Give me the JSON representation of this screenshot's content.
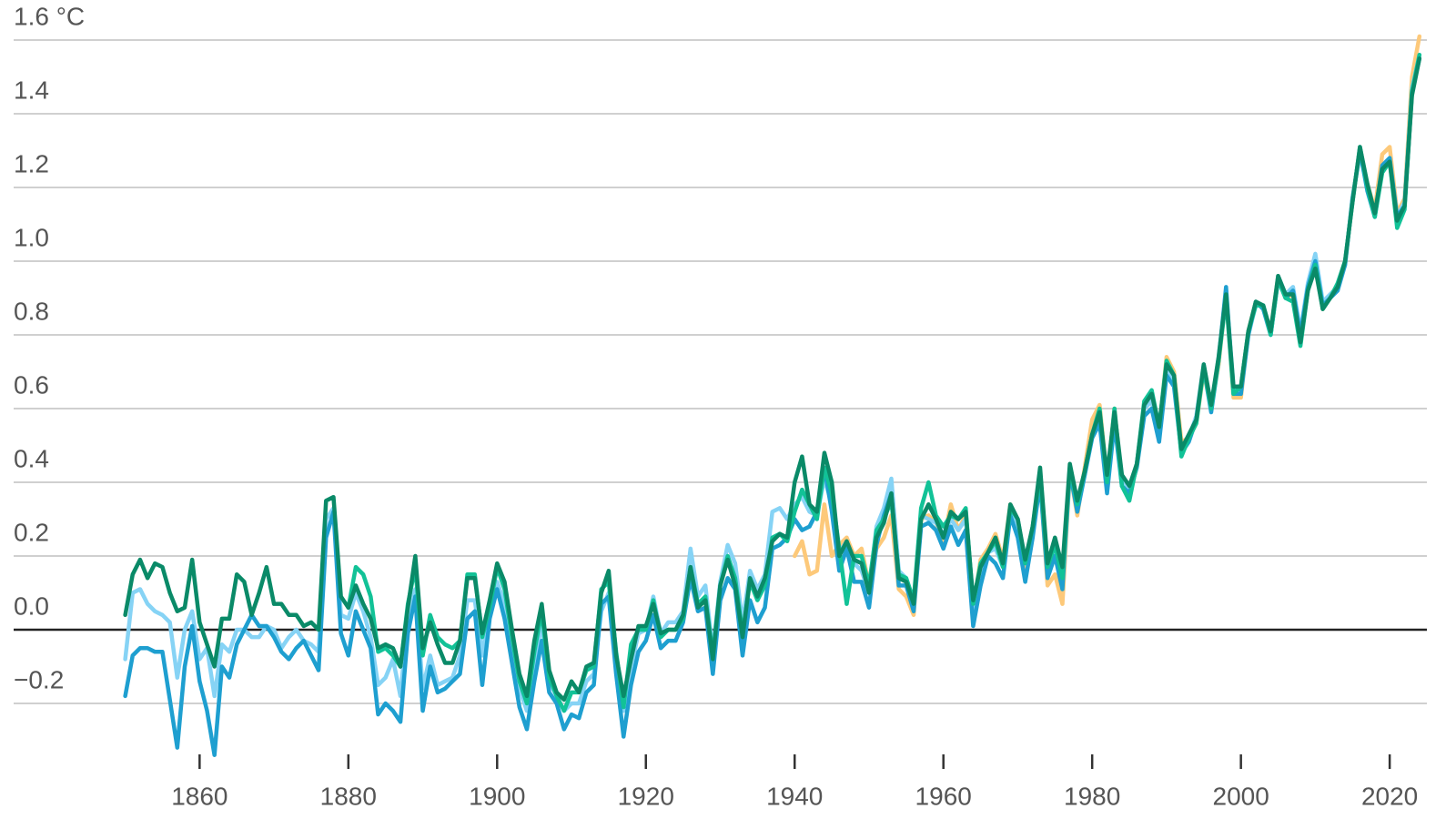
{
  "chart_data": {
    "type": "line",
    "xlim": [
      1835,
      2025
    ],
    "xticks": [
      1860,
      1880,
      1900,
      1920,
      1940,
      1960,
      1980,
      2000,
      2020
    ],
    "ylim": [
      -0.4,
      1.6
    ],
    "yticks": [
      {
        "value": -0.2,
        "label": "−0.2"
      },
      {
        "value": 0,
        "label": "0.0"
      },
      0.2,
      0.4,
      0.6,
      0.8,
      {
        "value": 1.0,
        "label": "1.0"
      },
      1.2,
      1.4,
      {
        "value": 1.6,
        "label": "1.6 °C"
      }
    ],
    "grid": true,
    "x": [
      1850,
      1851,
      1852,
      1853,
      1854,
      1855,
      1856,
      1857,
      1858,
      1859,
      1860,
      1861,
      1862,
      1863,
      1864,
      1865,
      1866,
      1867,
      1868,
      1869,
      1870,
      1871,
      1872,
      1873,
      1874,
      1875,
      1876,
      1877,
      1878,
      1879,
      1880,
      1881,
      1882,
      1883,
      1884,
      1885,
      1886,
      1887,
      1888,
      1889,
      1890,
      1891,
      1892,
      1893,
      1894,
      1895,
      1896,
      1897,
      1898,
      1899,
      1900,
      1901,
      1902,
      1903,
      1904,
      1905,
      1906,
      1907,
      1908,
      1909,
      1910,
      1911,
      1912,
      1913,
      1914,
      1915,
      1916,
      1917,
      1918,
      1919,
      1920,
      1921,
      1922,
      1923,
      1924,
      1925,
      1926,
      1927,
      1928,
      1929,
      1930,
      1931,
      1932,
      1933,
      1934,
      1935,
      1936,
      1937,
      1938,
      1939,
      1940,
      1941,
      1942,
      1943,
      1944,
      1945,
      1946,
      1947,
      1948,
      1949,
      1950,
      1951,
      1952,
      1953,
      1954,
      1955,
      1956,
      1957,
      1958,
      1959,
      1960,
      1961,
      1962,
      1963,
      1964,
      1965,
      1966,
      1967,
      1968,
      1969,
      1970,
      1971,
      1972,
      1973,
      1974,
      1975,
      1976,
      1977,
      1978,
      1979,
      1980,
      1981,
      1982,
      1983,
      1984,
      1985,
      1986,
      1987,
      1988,
      1989,
      1990,
      1991,
      1992,
      1993,
      1994,
      1995,
      1996,
      1997,
      1998,
      1999,
      2000,
      2001,
      2002,
      2003,
      2004,
      2005,
      2006,
      2007,
      2008,
      2009,
      2010,
      2011,
      2012,
      2013,
      2014,
      2015,
      2016,
      2017,
      2018,
      2019,
      2020,
      2021,
      2022,
      2023,
      2024
    ],
    "series": [
      {
        "color": "#fdc97a",
        "values": [
          null,
          null,
          null,
          null,
          null,
          null,
          null,
          null,
          null,
          null,
          null,
          null,
          null,
          null,
          null,
          null,
          null,
          null,
          null,
          null,
          null,
          null,
          null,
          null,
          null,
          null,
          null,
          null,
          null,
          null,
          null,
          null,
          null,
          null,
          null,
          null,
          null,
          null,
          null,
          null,
          null,
          null,
          null,
          null,
          null,
          null,
          null,
          null,
          null,
          null,
          null,
          null,
          null,
          null,
          null,
          null,
          null,
          null,
          null,
          null,
          null,
          null,
          null,
          null,
          null,
          null,
          null,
          null,
          null,
          null,
          null,
          null,
          null,
          null,
          null,
          null,
          null,
          null,
          null,
          null,
          null,
          null,
          null,
          null,
          null,
          null,
          null,
          null,
          null,
          null,
          0.2,
          0.24,
          0.15,
          0.16,
          0.34,
          0.2,
          0.23,
          0.25,
          0.2,
          0.22,
          0.12,
          0.22,
          0.25,
          0.31,
          0.11,
          0.09,
          0.04,
          0.3,
          0.31,
          0.29,
          0.24,
          0.34,
          0.27,
          0.31,
          0.06,
          0.19,
          0.22,
          0.26,
          0.19,
          0.34,
          0.28,
          0.17,
          0.27,
          0.41,
          0.12,
          0.15,
          0.07,
          0.43,
          0.31,
          0.44,
          0.57,
          0.61,
          0.41,
          0.6,
          0.4,
          0.37,
          0.44,
          0.6,
          0.64,
          0.54,
          0.74,
          0.7,
          0.51,
          0.52,
          0.56,
          0.7,
          0.6,
          0.72,
          0.91,
          0.63,
          0.63,
          0.81,
          0.89,
          0.87,
          0.81,
          0.96,
          0.9,
          0.91,
          0.78,
          0.93,
          1.0,
          0.87,
          0.91,
          0.93,
          0.99,
          1.17,
          1.3,
          1.21,
          1.14,
          1.29,
          1.31,
          1.13,
          1.17,
          1.5,
          1.61
        ]
      },
      {
        "color": "#86d3f5",
        "values": [
          -0.08,
          0.1,
          0.11,
          0.07,
          0.05,
          0.04,
          0.02,
          -0.13,
          0.0,
          0.05,
          -0.08,
          -0.05,
          -0.18,
          -0.04,
          -0.06,
          0.0,
          0.0,
          -0.02,
          -0.02,
          0.01,
          0.0,
          -0.05,
          -0.02,
          0.0,
          -0.03,
          -0.04,
          -0.06,
          0.3,
          0.33,
          0.04,
          0.03,
          0.1,
          0.05,
          -0.02,
          -0.15,
          -0.13,
          -0.08,
          -0.18,
          0.04,
          0.11,
          -0.16,
          -0.07,
          -0.15,
          -0.14,
          -0.13,
          -0.07,
          0.08,
          0.08,
          -0.07,
          0.06,
          0.13,
          0.07,
          -0.04,
          -0.16,
          -0.22,
          -0.1,
          0.02,
          -0.14,
          -0.18,
          -0.22,
          -0.2,
          -0.2,
          -0.14,
          -0.12,
          0.05,
          0.1,
          -0.08,
          -0.22,
          -0.1,
          -0.01,
          0.0,
          0.09,
          -0.01,
          0.02,
          0.02,
          0.05,
          0.22,
          0.09,
          0.12,
          -0.06,
          0.13,
          0.23,
          0.18,
          0.02,
          0.16,
          0.11,
          0.15,
          0.32,
          0.33,
          0.3,
          0.34,
          0.36,
          0.32,
          0.31,
          0.41,
          0.34,
          0.21,
          0.24,
          0.18,
          0.16,
          0.1,
          0.28,
          0.33,
          0.41,
          0.16,
          0.14,
          0.07,
          0.31,
          0.3,
          0.29,
          0.26,
          0.3,
          0.27,
          0.3,
          0.05,
          0.15,
          0.21,
          0.22,
          0.17,
          0.32,
          0.28,
          0.18,
          0.27,
          0.42,
          0.17,
          0.22,
          0.14,
          0.43,
          0.34,
          0.42,
          0.53,
          0.58,
          0.39,
          0.58,
          0.41,
          0.38,
          0.45,
          0.6,
          0.62,
          0.53,
          0.71,
          0.68,
          0.49,
          0.52,
          0.58,
          0.72,
          0.6,
          0.74,
          0.92,
          0.66,
          0.65,
          0.8,
          0.88,
          0.88,
          0.8,
          0.96,
          0.91,
          0.93,
          0.81,
          0.94,
          1.02,
          0.89,
          0.91,
          0.93,
          0.99,
          1.17,
          1.29,
          1.2,
          1.13,
          1.25,
          1.27,
          1.12,
          1.16,
          1.47,
          1.56
        ]
      },
      {
        "color": "#1e9fd0",
        "values": [
          -0.18,
          -0.07,
          -0.05,
          -0.05,
          -0.06,
          -0.06,
          -0.19,
          -0.32,
          -0.1,
          0.01,
          -0.14,
          -0.22,
          -0.34,
          -0.1,
          -0.13,
          -0.04,
          0.0,
          0.04,
          0.01,
          0.01,
          -0.02,
          -0.06,
          -0.08,
          -0.05,
          -0.03,
          -0.07,
          -0.11,
          0.25,
          0.32,
          -0.01,
          -0.07,
          0.05,
          0.0,
          -0.05,
          -0.23,
          -0.2,
          -0.22,
          -0.25,
          -0.01,
          0.09,
          -0.22,
          -0.1,
          -0.17,
          -0.16,
          -0.14,
          -0.12,
          0.03,
          0.05,
          -0.15,
          0.03,
          0.11,
          0.03,
          -0.09,
          -0.21,
          -0.27,
          -0.14,
          -0.03,
          -0.17,
          -0.2,
          -0.27,
          -0.23,
          -0.24,
          -0.17,
          -0.15,
          0.07,
          0.09,
          -0.12,
          -0.29,
          -0.15,
          -0.06,
          -0.03,
          0.04,
          -0.05,
          -0.03,
          -0.03,
          0.02,
          0.14,
          0.05,
          0.06,
          -0.12,
          0.08,
          0.14,
          0.11,
          -0.07,
          0.08,
          0.02,
          0.06,
          0.22,
          0.23,
          0.25,
          0.3,
          0.27,
          0.28,
          0.32,
          0.44,
          0.32,
          0.16,
          0.22,
          0.13,
          0.13,
          0.06,
          0.23,
          0.31,
          0.37,
          0.12,
          0.12,
          0.05,
          0.28,
          0.29,
          0.27,
          0.22,
          0.28,
          0.23,
          0.27,
          0.01,
          0.12,
          0.2,
          0.18,
          0.14,
          0.31,
          0.25,
          0.13,
          0.25,
          0.4,
          0.14,
          0.2,
          0.11,
          0.43,
          0.32,
          0.42,
          0.52,
          0.56,
          0.37,
          0.56,
          0.39,
          0.37,
          0.44,
          0.58,
          0.6,
          0.51,
          0.69,
          0.66,
          0.48,
          0.51,
          0.57,
          0.71,
          0.59,
          0.73,
          0.93,
          0.64,
          0.64,
          0.8,
          0.89,
          0.87,
          0.8,
          0.95,
          0.9,
          0.92,
          0.8,
          0.93,
          1.0,
          0.88,
          0.9,
          0.92,
          0.99,
          1.17,
          1.3,
          1.19,
          1.12,
          1.26,
          1.28,
          1.12,
          1.15,
          1.46,
          1.55
        ]
      },
      {
        "color": "#12c297",
        "values": [
          null,
          null,
          null,
          null,
          null,
          null,
          null,
          null,
          null,
          null,
          null,
          null,
          null,
          null,
          null,
          null,
          null,
          null,
          null,
          null,
          null,
          null,
          null,
          null,
          null,
          null,
          null,
          null,
          null,
          null,
          0.06,
          0.17,
          0.15,
          0.09,
          -0.06,
          -0.05,
          -0.07,
          -0.1,
          0.07,
          0.17,
          -0.07,
          0.04,
          -0.02,
          -0.04,
          -0.05,
          -0.03,
          0.15,
          0.15,
          -0.02,
          0.06,
          0.17,
          0.11,
          -0.02,
          -0.14,
          -0.2,
          -0.06,
          0.05,
          -0.13,
          -0.18,
          -0.22,
          -0.17,
          -0.17,
          -0.11,
          -0.1,
          0.11,
          0.13,
          -0.06,
          -0.21,
          -0.04,
          0.0,
          0.0,
          0.08,
          -0.02,
          0.0,
          0.0,
          0.03,
          0.17,
          0.07,
          0.09,
          -0.07,
          0.12,
          0.2,
          0.14,
          -0.01,
          0.13,
          0.08,
          0.12,
          0.25,
          0.26,
          0.24,
          0.32,
          0.38,
          0.34,
          0.3,
          0.44,
          0.37,
          0.22,
          0.07,
          0.2,
          0.2,
          0.12,
          0.27,
          0.3,
          0.35,
          0.15,
          0.14,
          0.08,
          0.33,
          0.4,
          0.31,
          0.28,
          0.31,
          0.3,
          0.33,
          0.07,
          0.18,
          0.21,
          0.24,
          0.17,
          0.33,
          0.3,
          0.18,
          0.28,
          0.42,
          0.17,
          0.23,
          0.14,
          0.44,
          0.34,
          0.43,
          0.53,
          0.6,
          0.4,
          0.6,
          0.39,
          0.35,
          0.45,
          0.62,
          0.65,
          0.55,
          0.73,
          0.69,
          0.47,
          0.52,
          0.56,
          0.71,
          0.6,
          0.73,
          0.9,
          0.64,
          0.66,
          0.81,
          0.88,
          0.88,
          0.8,
          0.95,
          0.9,
          0.89,
          0.77,
          0.92,
          0.99,
          0.87,
          0.9,
          0.94,
          1.0,
          1.16,
          1.31,
          1.2,
          1.12,
          1.24,
          1.27,
          1.09,
          1.14,
          1.46,
          1.56
        ]
      },
      {
        "color": "#0a8a68",
        "values": [
          0.04,
          0.15,
          0.19,
          0.14,
          0.18,
          0.17,
          0.1,
          0.05,
          0.06,
          0.19,
          0.02,
          -0.04,
          -0.1,
          0.03,
          0.03,
          0.15,
          0.13,
          0.04,
          0.1,
          0.17,
          0.07,
          0.07,
          0.04,
          0.04,
          0.01,
          0.02,
          0.0,
          0.35,
          0.36,
          0.09,
          0.06,
          0.12,
          0.07,
          0.03,
          -0.05,
          -0.04,
          -0.05,
          -0.1,
          0.06,
          0.2,
          -0.05,
          0.02,
          -0.04,
          -0.09,
          -0.09,
          -0.03,
          0.14,
          0.14,
          -0.01,
          0.08,
          0.18,
          0.13,
          0.0,
          -0.12,
          -0.18,
          -0.03,
          0.07,
          -0.11,
          -0.17,
          -0.19,
          -0.14,
          -0.17,
          -0.1,
          -0.09,
          0.1,
          0.16,
          -0.07,
          -0.18,
          -0.08,
          0.01,
          0.01,
          0.07,
          -0.01,
          0.0,
          0.0,
          0.04,
          0.17,
          0.06,
          0.08,
          -0.08,
          0.12,
          0.19,
          0.12,
          -0.02,
          0.14,
          0.09,
          0.14,
          0.24,
          0.26,
          0.25,
          0.4,
          0.47,
          0.34,
          0.32,
          0.48,
          0.4,
          0.2,
          0.24,
          0.19,
          0.18,
          0.1,
          0.25,
          0.29,
          0.37,
          0.14,
          0.13,
          0.07,
          0.3,
          0.34,
          0.3,
          0.25,
          0.32,
          0.3,
          0.32,
          0.08,
          0.17,
          0.21,
          0.25,
          0.18,
          0.34,
          0.3,
          0.19,
          0.28,
          0.44,
          0.18,
          0.25,
          0.17,
          0.45,
          0.35,
          0.43,
          0.53,
          0.59,
          0.42,
          0.59,
          0.42,
          0.39,
          0.45,
          0.61,
          0.64,
          0.55,
          0.72,
          0.69,
          0.49,
          0.53,
          0.57,
          0.72,
          0.61,
          0.74,
          0.91,
          0.66,
          0.66,
          0.81,
          0.89,
          0.88,
          0.81,
          0.96,
          0.91,
          0.91,
          0.78,
          0.92,
          0.98,
          0.87,
          0.9,
          0.93,
          1.0,
          1.16,
          1.31,
          1.21,
          1.13,
          1.25,
          1.27,
          1.11,
          1.15,
          1.45,
          1.55
        ]
      }
    ]
  }
}
